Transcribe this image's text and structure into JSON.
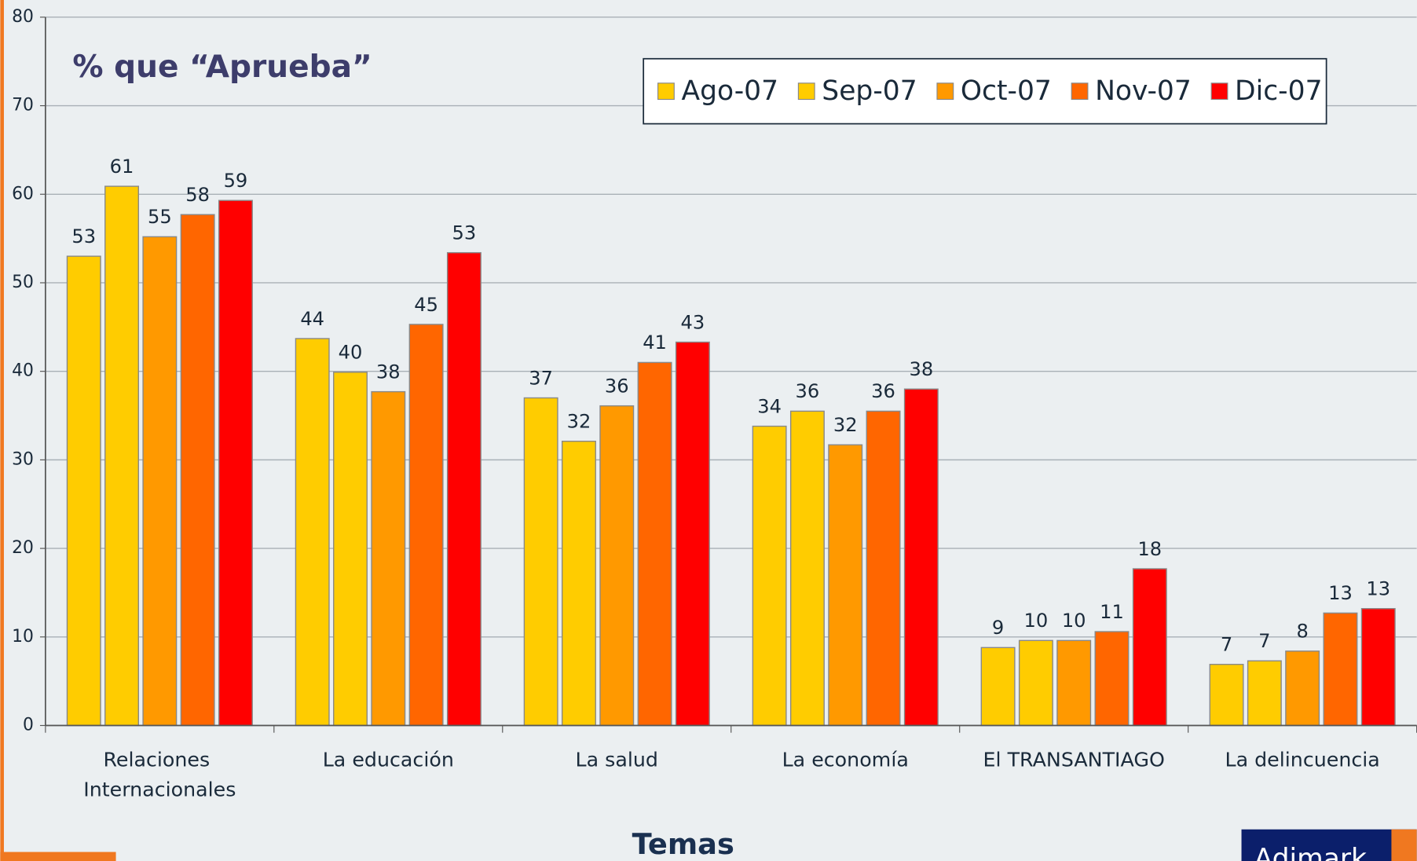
{
  "chart_data": {
    "type": "bar",
    "title": "% que “Aprueba”",
    "xlabel": "Temas",
    "logo": "Adimark",
    "categories": [
      "Relaciones Internacionales",
      "La educación",
      "La salud",
      "La economía",
      "El TRANSANTIAGO",
      "La delincuencia"
    ],
    "series": [
      {
        "name": "Ago-07",
        "color": "#ffcc00",
        "values": [
          53.0,
          43.7,
          37.0,
          33.8,
          8.8,
          6.9
        ],
        "value_labels": [
          "53",
          "44",
          "37",
          "34",
          "9",
          "7"
        ]
      },
      {
        "name": "Sep-07",
        "color": "#ffcc00",
        "values": [
          60.9,
          39.9,
          32.1,
          35.5,
          9.6,
          7.3
        ],
        "value_labels": [
          "61",
          "40",
          "32",
          "36",
          "10",
          "7"
        ]
      },
      {
        "name": "Oct-07",
        "color": "#ff9900",
        "values": [
          55.2,
          37.7,
          36.1,
          31.7,
          9.6,
          8.4
        ],
        "value_labels": [
          "55",
          "38",
          "36",
          "32",
          "10",
          "8"
        ]
      },
      {
        "name": "Nov-07",
        "color": "#ff6600",
        "values": [
          57.7,
          45.3,
          41.0,
          35.5,
          10.6,
          12.7
        ],
        "value_labels": [
          "58",
          "45",
          "41",
          "36",
          "11",
          "13"
        ]
      },
      {
        "name": "Dic-07",
        "color": "#ff0000",
        "values": [
          59.3,
          53.4,
          43.3,
          38.0,
          17.7,
          13.2
        ],
        "value_labels": [
          "59",
          "53",
          "43",
          "38",
          "18",
          "13"
        ]
      }
    ],
    "ylim": [
      0,
      80
    ],
    "yticks": [
      0,
      10,
      20,
      30,
      40,
      50,
      60,
      70,
      80
    ],
    "grid": true,
    "legend": "top-right"
  }
}
